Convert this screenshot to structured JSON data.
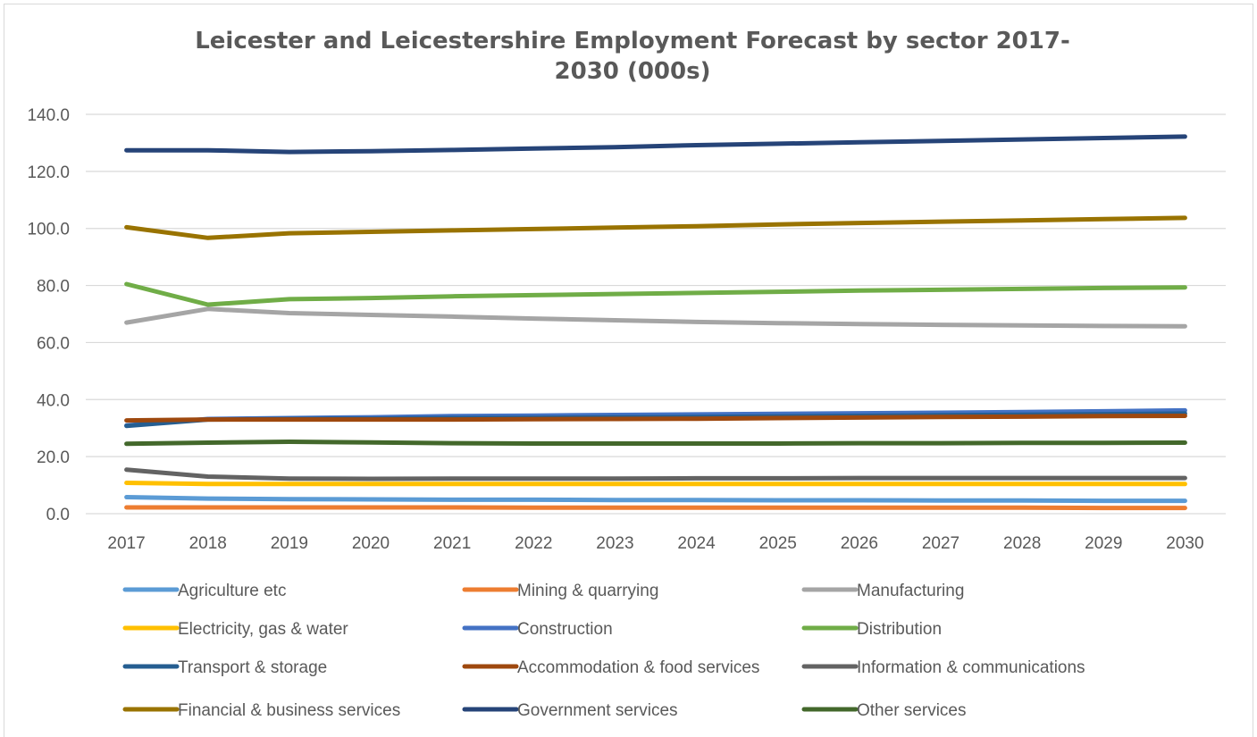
{
  "chart_data": {
    "type": "line",
    "title": "Leicester and Leicestershire Employment Forecast by sector 2017-2030 (000s)",
    "title_lines": [
      "Leicester and Leicestershire Employment Forecast by sector 2017-",
      "2030 (000s)"
    ],
    "xlabel": "",
    "ylabel": "",
    "x": [
      "2017",
      "2018",
      "2019",
      "2020",
      "2021",
      "2022",
      "2023",
      "2024",
      "2025",
      "2026",
      "2027",
      "2028",
      "2029",
      "2030"
    ],
    "ylim": [
      0,
      140
    ],
    "yticks": [
      "0.0",
      "20.0",
      "40.0",
      "60.0",
      "80.0",
      "100.0",
      "120.0",
      "140.0"
    ],
    "grid": true,
    "legend_position": "bottom",
    "series": [
      {
        "name": "Agriculture etc",
        "color": "#5b9bd5",
        "values": [
          5.8,
          5.3,
          5.1,
          5.0,
          4.9,
          4.9,
          4.8,
          4.8,
          4.7,
          4.7,
          4.6,
          4.6,
          4.5,
          4.5
        ]
      },
      {
        "name": "Mining & quarrying",
        "color": "#ed7d31",
        "values": [
          2.2,
          2.2,
          2.2,
          2.2,
          2.2,
          2.1,
          2.1,
          2.1,
          2.1,
          2.1,
          2.1,
          2.1,
          2.0,
          2.0
        ]
      },
      {
        "name": "Manufacturing",
        "color": "#a5a5a5",
        "values": [
          67.0,
          71.8,
          70.3,
          69.7,
          69.1,
          68.4,
          67.8,
          67.2,
          66.8,
          66.5,
          66.2,
          66.0,
          65.8,
          65.7
        ]
      },
      {
        "name": "Electricity, gas & water",
        "color": "#ffc000",
        "values": [
          10.8,
          10.4,
          10.4,
          10.4,
          10.4,
          10.4,
          10.4,
          10.4,
          10.4,
          10.4,
          10.4,
          10.4,
          10.4,
          10.4
        ]
      },
      {
        "name": "Construction",
        "color": "#4472c4",
        "values": [
          30.9,
          33.2,
          33.5,
          33.8,
          34.2,
          34.4,
          34.6,
          34.8,
          35.0,
          35.2,
          35.4,
          35.6,
          35.9,
          36.2
        ]
      },
      {
        "name": "Distribution",
        "color": "#70ad47",
        "values": [
          80.5,
          73.3,
          75.2,
          75.6,
          76.2,
          76.6,
          77.0,
          77.4,
          77.8,
          78.2,
          78.5,
          78.8,
          79.1,
          79.3
        ]
      },
      {
        "name": "Transport & storage",
        "color": "#255e91",
        "values": [
          30.8,
          33.0,
          33.2,
          33.3,
          33.5,
          33.6,
          33.8,
          33.9,
          34.1,
          34.3,
          34.5,
          34.7,
          34.9,
          35.1
        ]
      },
      {
        "name": "Accommodation & food services",
        "color": "#9e480e",
        "values": [
          32.7,
          33.0,
          33.0,
          33.0,
          33.0,
          33.1,
          33.2,
          33.3,
          33.5,
          33.7,
          33.9,
          34.0,
          34.2,
          34.3
        ]
      },
      {
        "name": "Information & communications",
        "color": "#636363",
        "values": [
          15.4,
          13.0,
          12.3,
          12.2,
          12.3,
          12.3,
          12.3,
          12.4,
          12.4,
          12.5,
          12.5,
          12.5,
          12.5,
          12.5
        ]
      },
      {
        "name": "Financial & business services",
        "color": "#997300",
        "values": [
          100.4,
          96.7,
          98.3,
          98.8,
          99.3,
          99.8,
          100.3,
          100.8,
          101.4,
          101.9,
          102.4,
          102.8,
          103.3,
          103.7
        ]
      },
      {
        "name": "Government services",
        "color": "#264478",
        "values": [
          127.4,
          127.4,
          126.8,
          127.1,
          127.5,
          128.0,
          128.5,
          129.2,
          129.7,
          130.2,
          130.7,
          131.2,
          131.7,
          132.2
        ]
      },
      {
        "name": "Other services",
        "color": "#43682b",
        "values": [
          24.5,
          24.9,
          25.2,
          25.0,
          24.7,
          24.6,
          24.6,
          24.6,
          24.6,
          24.7,
          24.7,
          24.8,
          24.8,
          24.9
        ]
      }
    ]
  }
}
